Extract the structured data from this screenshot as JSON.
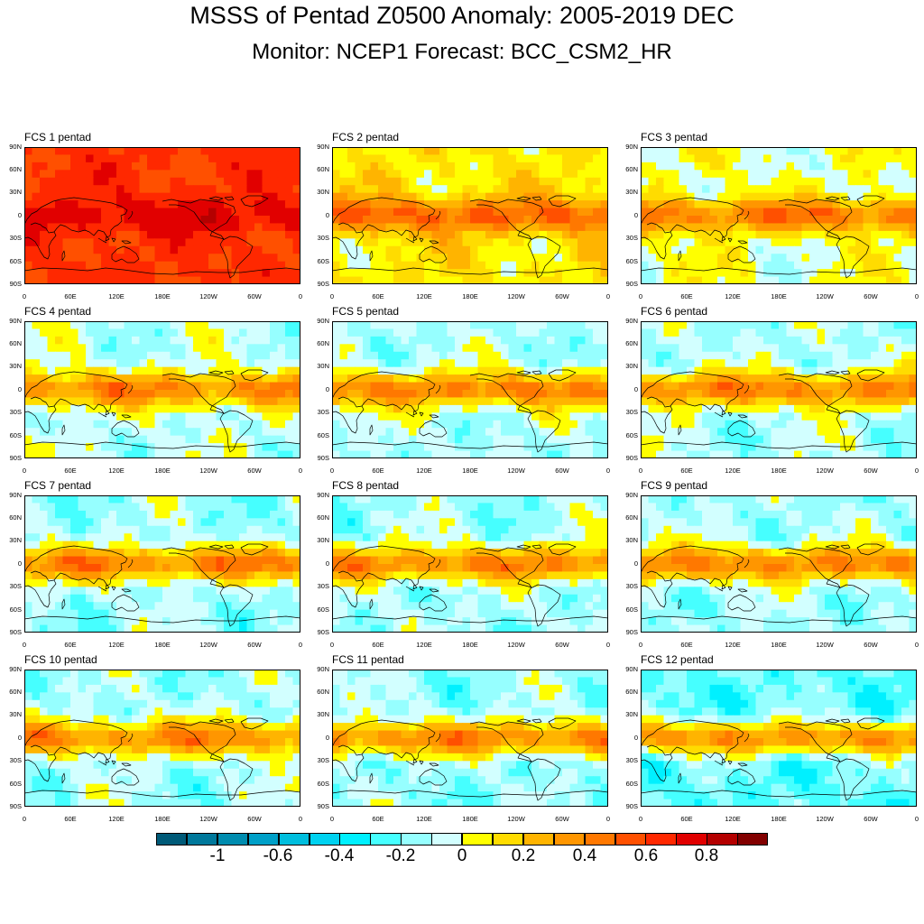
{
  "title": "MSSS of Pentad Z0500 Anomaly: 2005-2019 DEC",
  "subtitle": "Monitor: NCEP1   Forecast: BCC_CSM2_HR",
  "axes": {
    "lat_ticks": [
      "90N",
      "60N",
      "30N",
      "0",
      "30S",
      "60S",
      "90S"
    ],
    "lon_ticks": [
      "0",
      "60E",
      "120E",
      "180E",
      "120W",
      "60W",
      "0"
    ]
  },
  "colorbar": {
    "colors": [
      "#005a78",
      "#00789b",
      "#008caf",
      "#00a0c8",
      "#00bede",
      "#00d2f0",
      "#00f0ff",
      "#46ffff",
      "#96ffff",
      "#d2ffff",
      "#ffff00",
      "#ffdc00",
      "#ffb400",
      "#ff9600",
      "#ff7800",
      "#ff5000",
      "#ff2800",
      "#e10000",
      "#b40000",
      "#820000"
    ],
    "labels": [
      "-1",
      "-0.6",
      "-0.4",
      "-0.2",
      "0",
      "0.2",
      "0.4",
      "0.6",
      "0.8"
    ]
  },
  "chart_data": {
    "type": "heatmap",
    "title": "MSSS of Pentad Z0500 Anomaly: 2005-2019 DEC",
    "variable": "MSSS",
    "levels": [
      -1,
      -0.9,
      -0.8,
      -0.7,
      -0.6,
      -0.5,
      -0.4,
      -0.3,
      -0.2,
      -0.1,
      0,
      0.1,
      0.2,
      0.3,
      0.4,
      0.5,
      0.6,
      0.7,
      0.8,
      0.9,
      1
    ],
    "lon_range": [
      0,
      360
    ],
    "lat_range": [
      -90,
      90
    ],
    "panels": [
      {
        "label": "FCS 1 pentad",
        "tropical_skill": 0.75,
        "extratropical_skill": 0.62
      },
      {
        "label": "FCS 2 pentad",
        "tropical_skill": 0.5,
        "extratropical_skill": 0.1
      },
      {
        "label": "FCS 3 pentad",
        "tropical_skill": 0.45,
        "extratropical_skill": 0.0
      },
      {
        "label": "FCS 4 pentad",
        "tropical_skill": 0.4,
        "extratropical_skill": -0.08
      },
      {
        "label": "FCS 5 pentad",
        "tropical_skill": 0.4,
        "extratropical_skill": -0.1
      },
      {
        "label": "FCS 6 pentad",
        "tropical_skill": 0.4,
        "extratropical_skill": -0.1
      },
      {
        "label": "FCS 7 pentad",
        "tropical_skill": 0.4,
        "extratropical_skill": -0.12
      },
      {
        "label": "FCS 8 pentad",
        "tropical_skill": 0.4,
        "extratropical_skill": -0.12
      },
      {
        "label": "FCS 9 pentad",
        "tropical_skill": 0.4,
        "extratropical_skill": -0.12
      },
      {
        "label": "FCS 10 pentad",
        "tropical_skill": 0.38,
        "extratropical_skill": -0.12
      },
      {
        "label": "FCS 11 pentad",
        "tropical_skill": 0.38,
        "extratropical_skill": -0.14
      },
      {
        "label": "FCS 12 pentad",
        "tropical_skill": 0.35,
        "extratropical_skill": -0.22
      }
    ]
  }
}
